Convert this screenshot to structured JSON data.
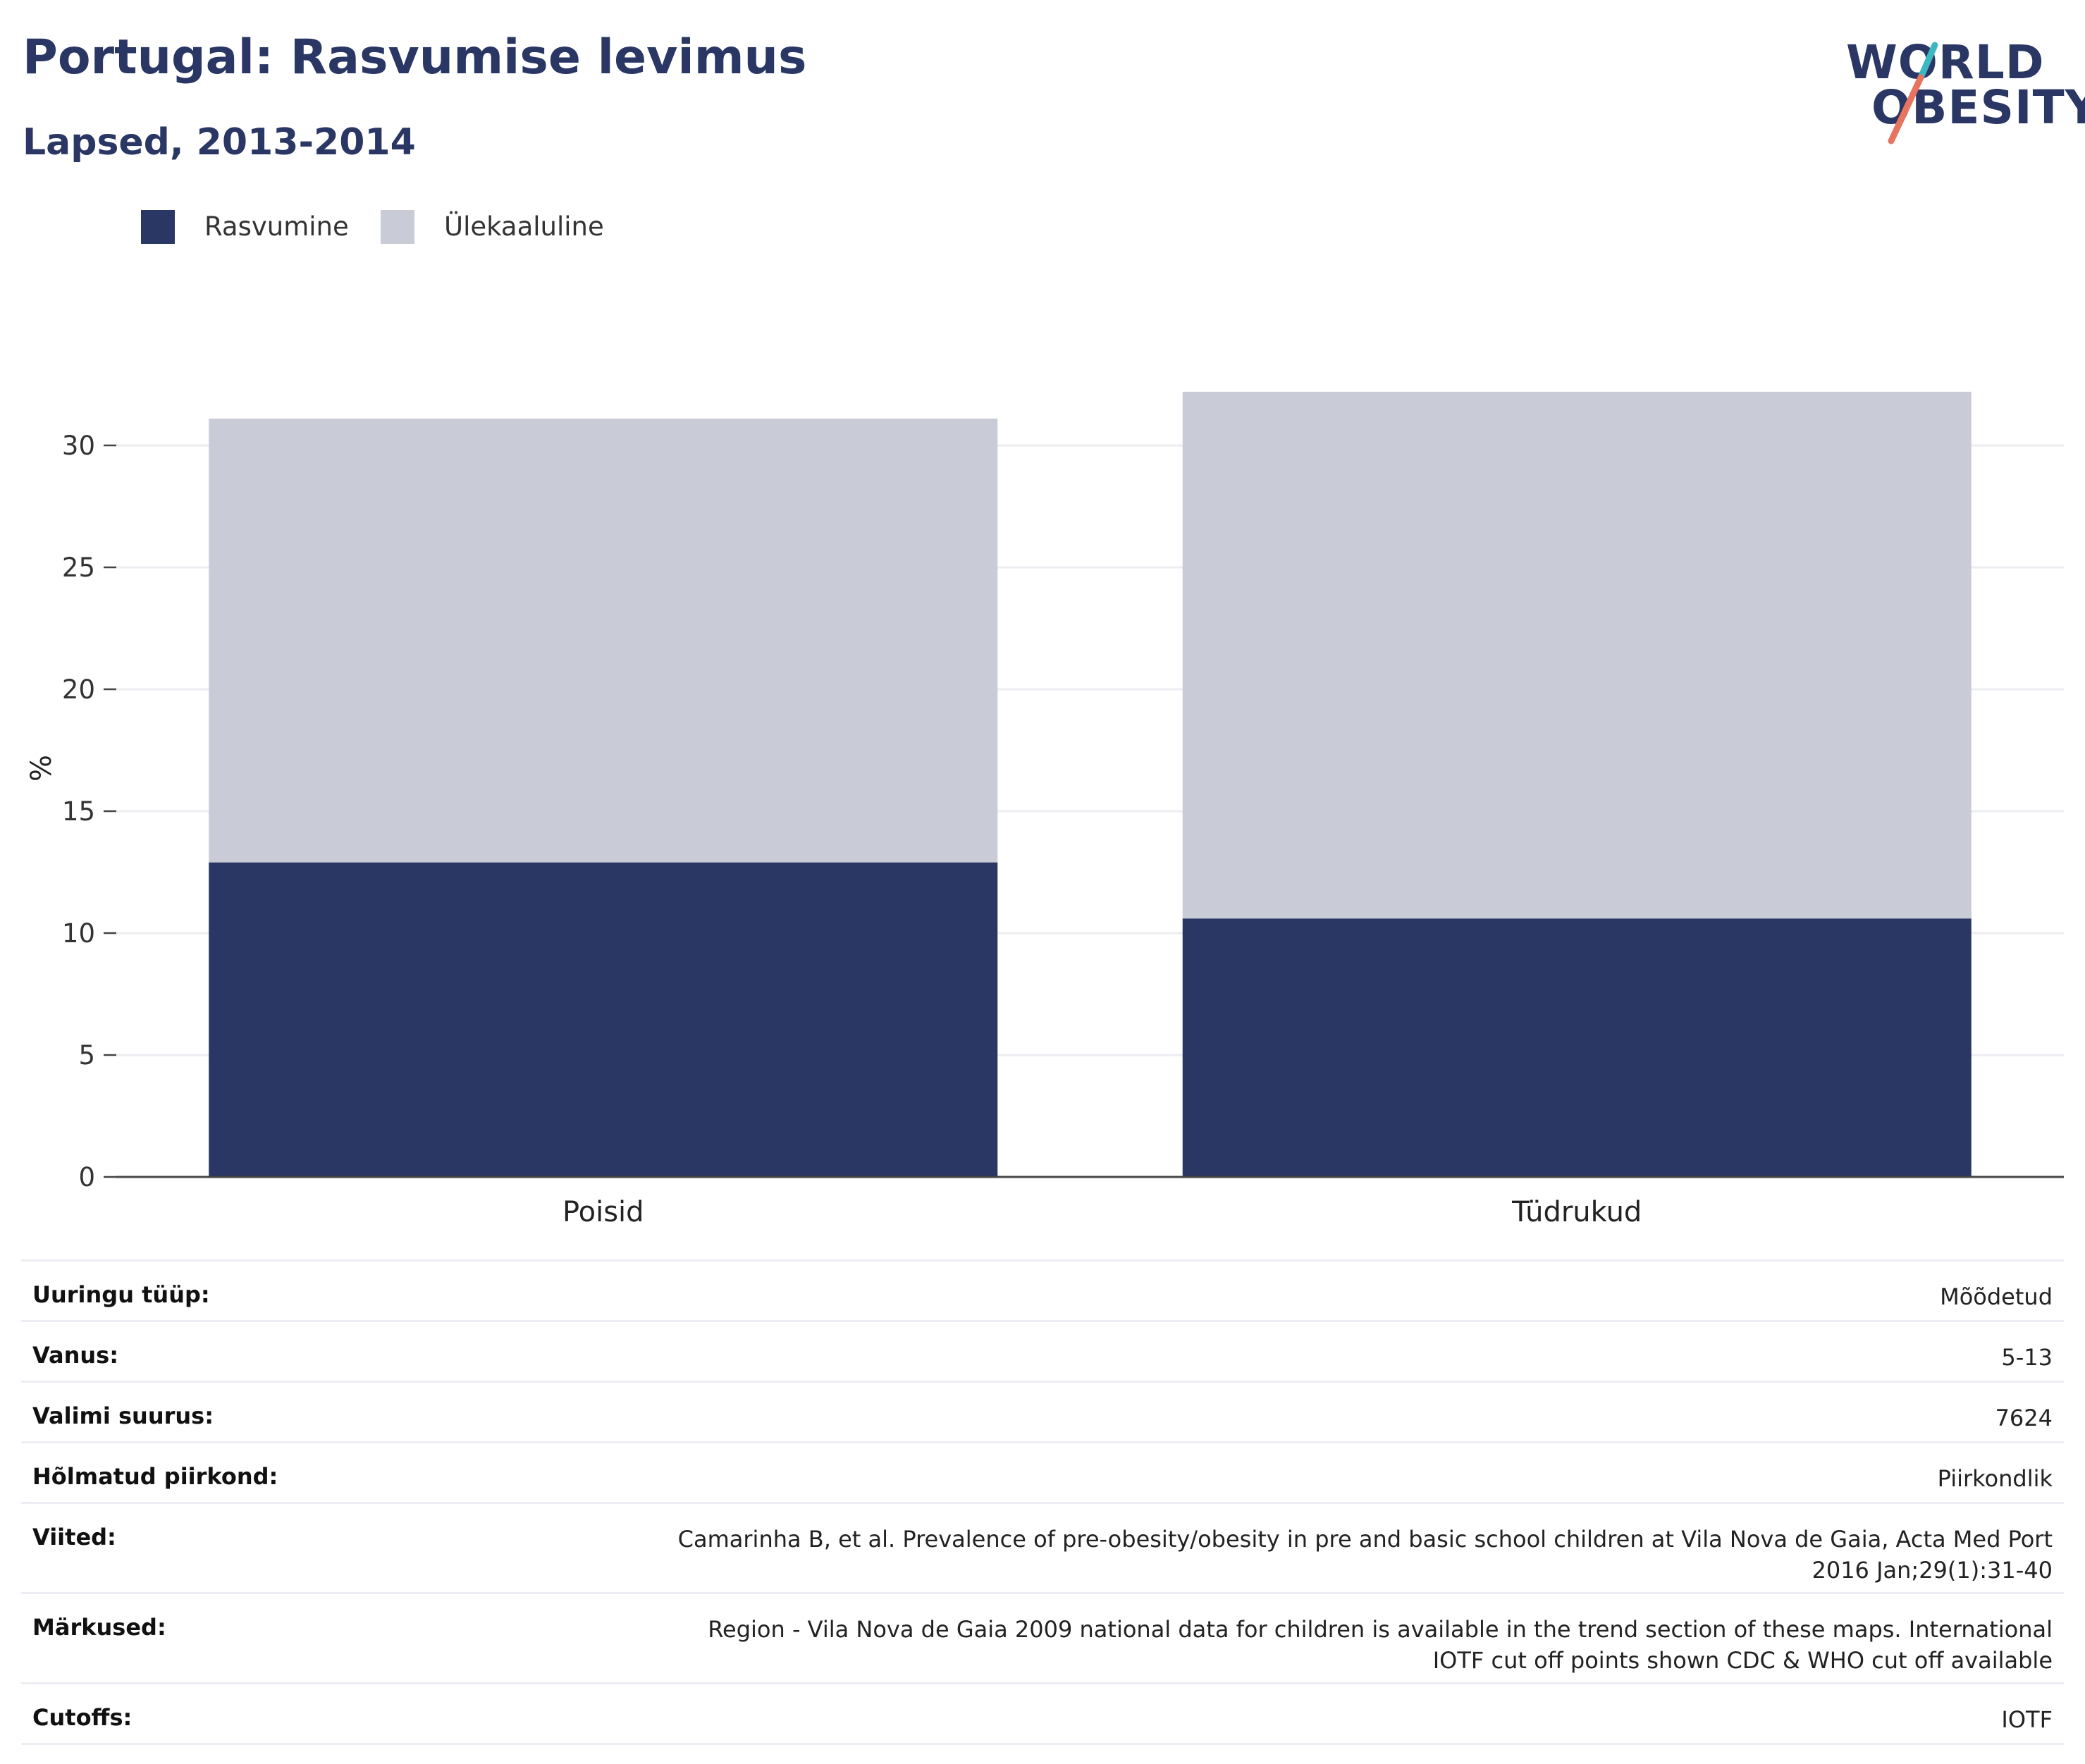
{
  "header": {
    "title": "Portugal: Rasvumise levimus",
    "subtitle": "Lapsed, 2013-2014"
  },
  "logo": {
    "line1": "WORLD",
    "line2": "OBESITY",
    "colors": {
      "text": "#2a3663",
      "slash_top": "#3db8c1",
      "slash_bottom": "#e8735f"
    }
  },
  "legend": [
    {
      "label": "Rasvumine",
      "color": "#2a3663"
    },
    {
      "label": "Ülekaaluline",
      "color": "#c9cbd6"
    }
  ],
  "chart_data": {
    "type": "bar",
    "stacked": true,
    "categories": [
      "Poisid",
      "Tüdrukud"
    ],
    "series": [
      {
        "name": "Rasvumine",
        "values": [
          12.9,
          10.6
        ],
        "color": "#2a3663"
      },
      {
        "name": "Ülekaaluline",
        "values": [
          18.2,
          21.6
        ],
        "color": "#c9cbd6"
      }
    ],
    "ylabel": "%",
    "ylim": [
      0,
      33
    ],
    "yticks": [
      0,
      5,
      10,
      15,
      20,
      25,
      30
    ],
    "grid": true,
    "legend_position": "top-left"
  },
  "info": [
    {
      "key": "Uuringu tüüp:",
      "value": "Mõõdetud"
    },
    {
      "key": "Vanus:",
      "value": "5-13"
    },
    {
      "key": "Valimi suurus:",
      "value": "7624"
    },
    {
      "key": "Hõlmatud piirkond:",
      "value": "Piirkondlik"
    },
    {
      "key": "Viited:",
      "value": "Camarinha B, et al. Prevalence of pre-obesity/obesity in pre and basic school children at Vila Nova de Gaia, Acta Med Port 2016 Jan;29(1):31-40"
    },
    {
      "key": "Märkused:",
      "value": "Region - Vila Nova de Gaia 2009 national data for children is available in the trend section of these maps. International IOTF cut off points shown CDC & WHO cut off available"
    },
    {
      "key": "Cutoffs:",
      "value": "IOTF"
    }
  ]
}
